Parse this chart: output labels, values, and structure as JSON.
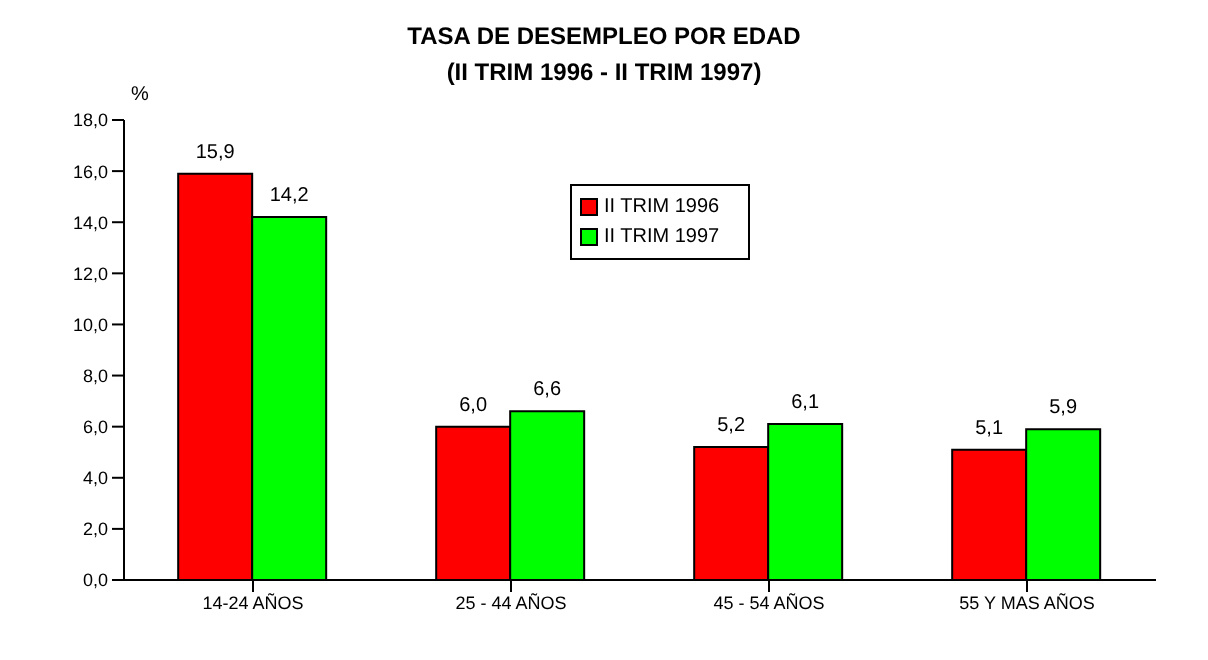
{
  "chart_data": {
    "type": "bar",
    "title": "TASA DE DESEMPLEO POR EDAD",
    "subtitle": "(II TRIM 1996 - II TRIM 1997)",
    "ylabel": "%",
    "categories": [
      "14-24 AÑOS",
      "25 - 44 AÑOS",
      "45 - 54 AÑOS",
      "55 Y MAS AÑOS"
    ],
    "series": [
      {
        "name": "II TRIM 1996",
        "color": "#ff0000",
        "values": [
          15.9,
          6.0,
          5.2,
          5.1
        ],
        "value_labels": [
          "15,9",
          "6,0",
          "5,2",
          "5,1"
        ]
      },
      {
        "name": "II TRIM 1997",
        "color": "#00ff00",
        "values": [
          14.2,
          6.6,
          6.1,
          5.9
        ],
        "value_labels": [
          "14,2",
          "6,6",
          "6,1",
          "5,9"
        ]
      }
    ],
    "ylim": [
      0,
      18
    ],
    "yticks": [
      {
        "value": 0,
        "label": "0,0"
      },
      {
        "value": 2,
        "label": "2,0"
      },
      {
        "value": 4,
        "label": "4,0"
      },
      {
        "value": 6,
        "label": "6,0"
      },
      {
        "value": 8,
        "label": "8,0"
      },
      {
        "value": 10,
        "label": "10,0"
      },
      {
        "value": 12,
        "label": "12,0"
      },
      {
        "value": 14,
        "label": "14,0"
      },
      {
        "value": 16,
        "label": "16,0"
      },
      {
        "value": 18,
        "label": "18,0"
      }
    ],
    "grid": false,
    "legend": "top"
  }
}
